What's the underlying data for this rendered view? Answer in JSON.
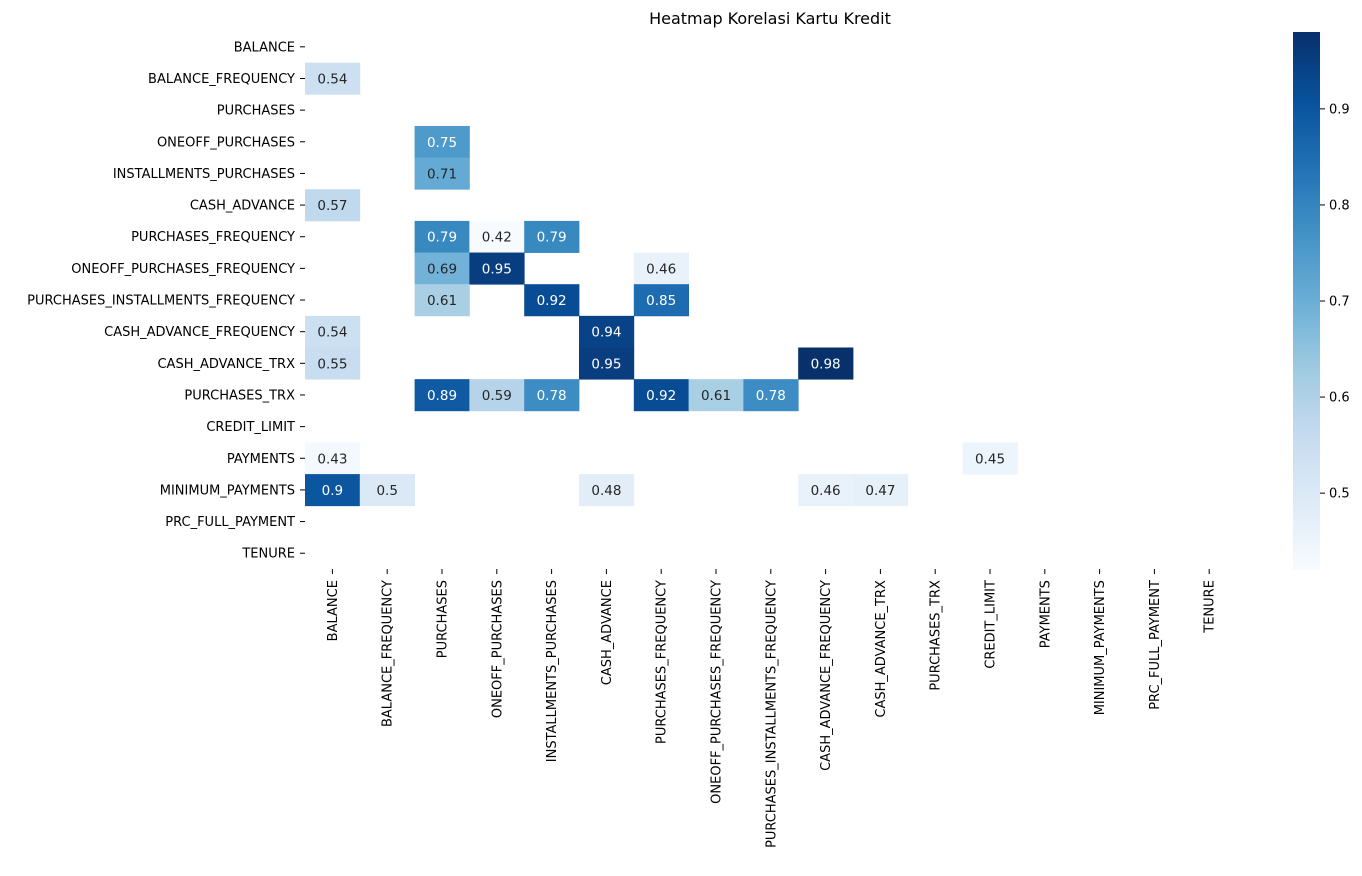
{
  "chart_data": {
    "type": "heatmap",
    "title": "Heatmap Korelasi Kartu Kredit",
    "rows": [
      "BALANCE",
      "BALANCE_FREQUENCY",
      "PURCHASES",
      "ONEOFF_PURCHASES",
      "INSTALLMENTS_PURCHASES",
      "CASH_ADVANCE",
      "PURCHASES_FREQUENCY",
      "ONEOFF_PURCHASES_FREQUENCY",
      "PURCHASES_INSTALLMENTS_FREQUENCY",
      "CASH_ADVANCE_FREQUENCY",
      "CASH_ADVANCE_TRX",
      "PURCHASES_TRX",
      "CREDIT_LIMIT",
      "PAYMENTS",
      "MINIMUM_PAYMENTS",
      "PRC_FULL_PAYMENT",
      "TENURE"
    ],
    "columns": [
      "BALANCE",
      "BALANCE_FREQUENCY",
      "PURCHASES",
      "ONEOFF_PURCHASES",
      "INSTALLMENTS_PURCHASES",
      "CASH_ADVANCE",
      "PURCHASES_FREQUENCY",
      "ONEOFF_PURCHASES_FREQUENCY",
      "PURCHASES_INSTALLMENTS_FREQUENCY",
      "CASH_ADVANCE_FREQUENCY",
      "CASH_ADVANCE_TRX",
      "PURCHASES_TRX",
      "CREDIT_LIMIT",
      "PAYMENTS",
      "MINIMUM_PAYMENTS",
      "PRC_FULL_PAYMENT",
      "TENURE"
    ],
    "cells": [
      {
        "row": 1,
        "col": 0,
        "value": 0.54,
        "label": "0.54"
      },
      {
        "row": 3,
        "col": 2,
        "value": 0.75,
        "label": "0.75"
      },
      {
        "row": 4,
        "col": 2,
        "value": 0.71,
        "label": "0.71"
      },
      {
        "row": 5,
        "col": 0,
        "value": 0.57,
        "label": "0.57"
      },
      {
        "row": 6,
        "col": 2,
        "value": 0.79,
        "label": "0.79"
      },
      {
        "row": 6,
        "col": 3,
        "value": 0.42,
        "label": "0.42"
      },
      {
        "row": 6,
        "col": 4,
        "value": 0.79,
        "label": "0.79"
      },
      {
        "row": 7,
        "col": 2,
        "value": 0.69,
        "label": "0.69"
      },
      {
        "row": 7,
        "col": 3,
        "value": 0.95,
        "label": "0.95"
      },
      {
        "row": 7,
        "col": 6,
        "value": 0.46,
        "label": "0.46"
      },
      {
        "row": 8,
        "col": 2,
        "value": 0.61,
        "label": "0.61"
      },
      {
        "row": 8,
        "col": 4,
        "value": 0.92,
        "label": "0.92"
      },
      {
        "row": 8,
        "col": 6,
        "value": 0.85,
        "label": "0.85"
      },
      {
        "row": 9,
        "col": 0,
        "value": 0.54,
        "label": "0.54"
      },
      {
        "row": 9,
        "col": 5,
        "value": 0.94,
        "label": "0.94"
      },
      {
        "row": 10,
        "col": 0,
        "value": 0.55,
        "label": "0.55"
      },
      {
        "row": 10,
        "col": 5,
        "value": 0.95,
        "label": "0.95"
      },
      {
        "row": 10,
        "col": 9,
        "value": 0.98,
        "label": "0.98"
      },
      {
        "row": 11,
        "col": 2,
        "value": 0.89,
        "label": "0.89"
      },
      {
        "row": 11,
        "col": 3,
        "value": 0.59,
        "label": "0.59"
      },
      {
        "row": 11,
        "col": 4,
        "value": 0.78,
        "label": "0.78"
      },
      {
        "row": 11,
        "col": 6,
        "value": 0.92,
        "label": "0.92"
      },
      {
        "row": 11,
        "col": 7,
        "value": 0.61,
        "label": "0.61"
      },
      {
        "row": 11,
        "col": 8,
        "value": 0.78,
        "label": "0.78"
      },
      {
        "row": 13,
        "col": 0,
        "value": 0.43,
        "label": "0.43"
      },
      {
        "row": 13,
        "col": 12,
        "value": 0.45,
        "label": "0.45"
      },
      {
        "row": 14,
        "col": 0,
        "value": 0.9,
        "label": "0.9"
      },
      {
        "row": 14,
        "col": 1,
        "value": 0.5,
        "label": "0.5"
      },
      {
        "row": 14,
        "col": 5,
        "value": 0.48,
        "label": "0.48"
      },
      {
        "row": 14,
        "col": 9,
        "value": 0.46,
        "label": "0.46"
      },
      {
        "row": 14,
        "col": 10,
        "value": 0.47,
        "label": "0.47"
      }
    ],
    "colorbar": {
      "vmin": 0.42,
      "vmax": 0.98,
      "ticks": [
        0.5,
        0.6,
        0.7,
        0.8,
        0.9
      ],
      "tick_labels": [
        "0.5",
        "0.6",
        "0.7",
        "0.8",
        "0.9"
      ],
      "colormap": "Blues",
      "colors": [
        "#f7fbff",
        "#deebf7",
        "#c6dbef",
        "#9ecae1",
        "#6baed6",
        "#4292c6",
        "#2171b5",
        "#08519c",
        "#08306b"
      ]
    },
    "legend": "colorbar-right",
    "grid": false
  }
}
